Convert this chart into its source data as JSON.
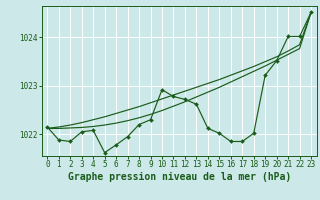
{
  "bg_color": "#cce8e8",
  "grid_color": "#ffffff",
  "line_color": "#1a5c1a",
  "xlabel": "Graphe pression niveau de la mer (hPa)",
  "xlabel_fontsize": 7,
  "tick_fontsize": 5.5,
  "ytick_labels": [
    1022,
    1023,
    1024
  ],
  "ylim": [
    1021.55,
    1024.65
  ],
  "xlim": [
    -0.5,
    23.5
  ],
  "xticks": [
    0,
    1,
    2,
    3,
    4,
    5,
    6,
    7,
    8,
    9,
    10,
    11,
    12,
    13,
    14,
    15,
    16,
    17,
    18,
    19,
    20,
    21,
    22,
    23
  ],
  "series_main": [
    1022.15,
    1021.88,
    1021.85,
    1022.05,
    1022.08,
    1021.62,
    1021.78,
    1021.95,
    1022.2,
    1022.3,
    1022.92,
    1022.78,
    1022.72,
    1022.62,
    1022.12,
    1022.02,
    1021.85,
    1021.85,
    1022.02,
    1023.22,
    1023.52,
    1024.02,
    1024.02,
    1024.52
  ],
  "series_line1": [
    1022.12,
    1022.12,
    1022.13,
    1022.14,
    1022.16,
    1022.19,
    1022.23,
    1022.28,
    1022.34,
    1022.41,
    1022.49,
    1022.58,
    1022.67,
    1022.77,
    1022.87,
    1022.97,
    1023.08,
    1023.19,
    1023.3,
    1023.41,
    1023.53,
    1023.65,
    1023.77,
    1024.52
  ],
  "series_line2": [
    1022.12,
    1022.15,
    1022.19,
    1022.24,
    1022.3,
    1022.36,
    1022.43,
    1022.5,
    1022.57,
    1022.65,
    1022.73,
    1022.81,
    1022.89,
    1022.97,
    1023.05,
    1023.13,
    1023.22,
    1023.31,
    1023.4,
    1023.5,
    1023.6,
    1023.72,
    1023.85,
    1024.52
  ],
  "marker_size": 2.0,
  "linewidth": 0.85
}
